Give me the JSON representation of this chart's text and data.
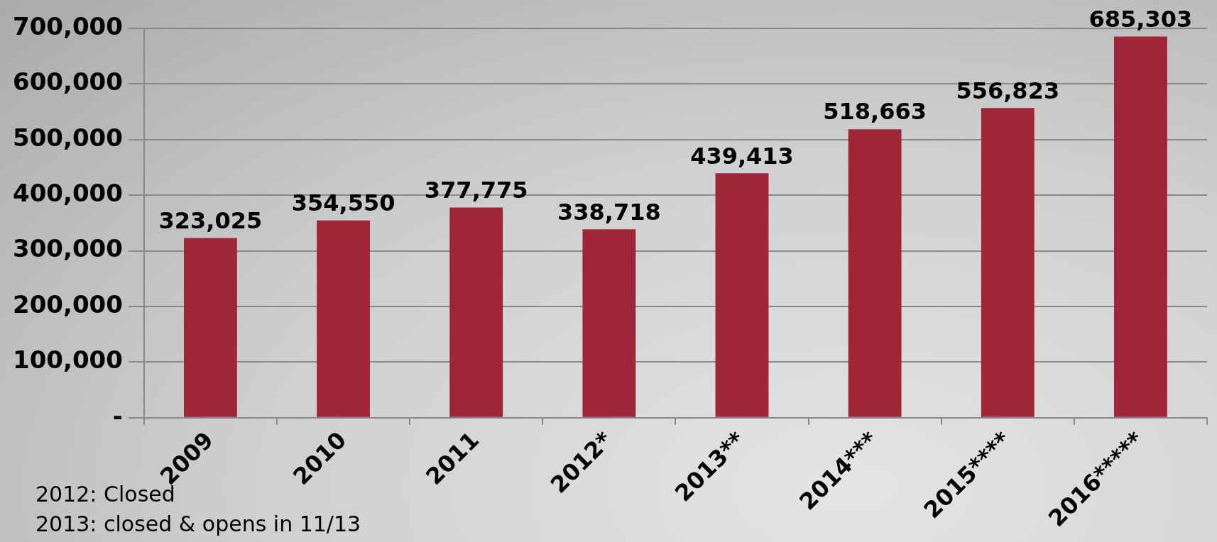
{
  "chart_data": {
    "type": "bar",
    "categories": [
      "2009",
      "2010",
      "2011",
      "2012*",
      "2013**",
      "2014***",
      "2015****",
      "2016*****"
    ],
    "values": [
      323025,
      354550,
      377775,
      338718,
      439413,
      518663,
      556823,
      685303
    ],
    "color": "#9e2636",
    "ylim": [
      0,
      700000
    ],
    "yticks": [
      {
        "value": 0,
        "label": "-"
      },
      {
        "value": 100000,
        "label": "100,000"
      },
      {
        "value": 200000,
        "label": "200,000"
      },
      {
        "value": 300000,
        "label": "300,000"
      },
      {
        "value": 400000,
        "label": "400,000"
      },
      {
        "value": 500000,
        "label": "500,000"
      },
      {
        "value": 600000,
        "label": "600,000"
      },
      {
        "value": 700000,
        "label": "700,000"
      }
    ],
    "value_labels": [
      "323,025",
      "354,550",
      "377,775",
      "338,718",
      "439,413",
      "518,663",
      "556,823",
      "685,303"
    ],
    "grid": "y",
    "legend": false,
    "annotations": [
      "2012: Closed",
      "2013: closed & opens in 11/13"
    ]
  }
}
